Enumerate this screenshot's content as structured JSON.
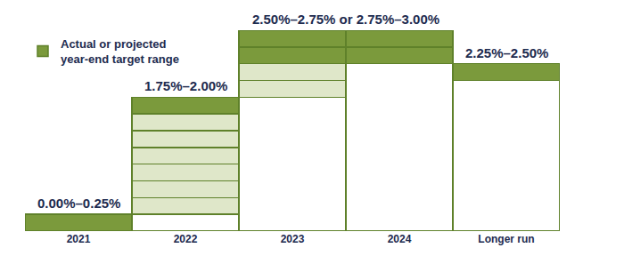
{
  "chart_data": {
    "type": "bar",
    "stacked": true,
    "categories": [
      "2021",
      "2022",
      "2023",
      "2024",
      "Longer run"
    ],
    "series": [
      {
        "color": "#ffffff",
        "values": [
          null,
          0.25,
          2.0,
          2.5,
          2.25
        ]
      },
      {
        "color": "#dfe7c9",
        "values": [
          null,
          0.25,
          0.25,
          null,
          null
        ]
      },
      {
        "color": "#dfe7c9",
        "values": [
          null,
          0.25,
          0.25,
          null,
          null
        ]
      },
      {
        "color": "#dfe7c9",
        "values": [
          null,
          0.25,
          null,
          null,
          null
        ]
      },
      {
        "color": "#dfe7c9",
        "values": [
          null,
          0.25,
          null,
          null,
          null
        ]
      },
      {
        "color": "#dfe7c9",
        "values": [
          null,
          0.25,
          null,
          null,
          null
        ]
      },
      {
        "color": "#dfe7c9",
        "values": [
          null,
          0.25,
          null,
          null,
          null
        ]
      },
      {
        "name": "Actual or projected year-end target range",
        "color": "#7b9a3c",
        "values": [
          0.25,
          0.25,
          0.25,
          0.25,
          0.25
        ]
      },
      {
        "color": "#7b9a3c",
        "values": [
          null,
          null,
          0.25,
          0.25,
          null
        ]
      }
    ],
    "annotations": [
      {
        "text": "0.00%–0.25%",
        "categories": [
          "2021"
        ]
      },
      {
        "text": "1.75%–2.00%",
        "categories": [
          "2022"
        ]
      },
      {
        "text": "2.50%–2.75% or 2.75%–3.00%",
        "categories": [
          "2023",
          "2024"
        ]
      },
      {
        "text": "2.25%–2.50%",
        "categories": [
          "Longer run"
        ]
      }
    ],
    "ylim": [
      0,
      3
    ],
    "tick_labels": "x",
    "legend": "top-left",
    "grid": false
  }
}
